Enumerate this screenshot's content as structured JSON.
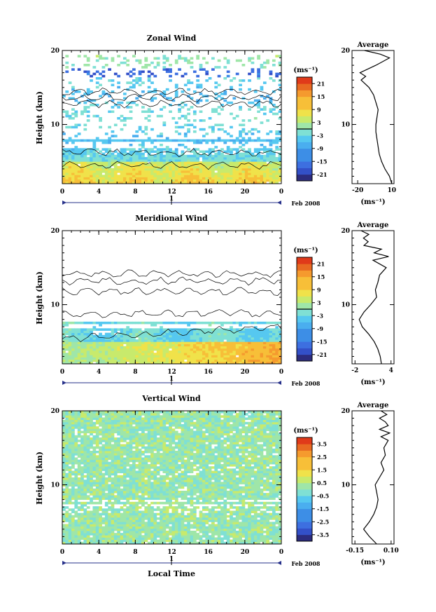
{
  "page": {
    "x_axis_title": "Local Time",
    "date_label": "Feb 2008",
    "day_marker": "1"
  },
  "chart_data": [
    {
      "type": "heatmap",
      "title": "Zonal Wind",
      "ylabel": "Height (km)",
      "xlim": [
        0,
        24
      ],
      "ylim": [
        2,
        20
      ],
      "x_ticks": [
        "0",
        "4",
        "8",
        "12",
        "16",
        "20",
        "0"
      ],
      "y_ticks": [
        "10",
        "20"
      ],
      "colorbar": {
        "unit": "(ms⁻¹)",
        "ticks": [
          "21",
          "15",
          "9",
          "3",
          "-3",
          "-9",
          "-15",
          "-21"
        ],
        "range": [
          -24,
          24
        ],
        "zero_line": 0
      },
      "profile": {
        "title": "Average",
        "xlabel": "(ms⁻¹)",
        "xlim": [
          -25,
          12
        ],
        "x_ticks": [
          "-20",
          "10"
        ],
        "y_ticks": [
          "10",
          "20"
        ],
        "points": [
          [
            10,
            2
          ],
          [
            8,
            3
          ],
          [
            4,
            4
          ],
          [
            1,
            5
          ],
          [
            -1,
            6
          ],
          [
            -2,
            7
          ],
          [
            -3,
            8
          ],
          [
            -4,
            9
          ],
          [
            -4,
            10
          ],
          [
            -3,
            11
          ],
          [
            -2,
            12
          ],
          [
            -4,
            13
          ],
          [
            -6,
            14
          ],
          [
            -10,
            15
          ],
          [
            -17,
            16
          ],
          [
            -13,
            16.5
          ],
          [
            -18,
            17
          ],
          [
            -4,
            18
          ],
          [
            8,
            19
          ],
          [
            0,
            19.5
          ],
          [
            -14,
            20
          ]
        ]
      }
    },
    {
      "type": "heatmap",
      "title": "Meridional Wind",
      "ylabel": "Height (km)",
      "xlim": [
        0,
        24
      ],
      "ylim": [
        2,
        20
      ],
      "x_ticks": [
        "0",
        "4",
        "8",
        "12",
        "16",
        "20",
        "0"
      ],
      "y_ticks": [
        "10",
        "20"
      ],
      "colorbar": {
        "unit": "(ms⁻¹)",
        "ticks": [
          "21",
          "15",
          "9",
          "3",
          "-3",
          "-9",
          "-15",
          "-21"
        ],
        "range": [
          -24,
          24
        ],
        "zero_line": 0
      },
      "profile": {
        "title": "Average",
        "xlabel": "(ms⁻¹)",
        "xlim": [
          -2.5,
          4.5
        ],
        "x_ticks": [
          "-2",
          "4"
        ],
        "y_ticks": [
          "10",
          "20"
        ],
        "points": [
          [
            2.4,
            2
          ],
          [
            2.2,
            3
          ],
          [
            1.8,
            4
          ],
          [
            1.2,
            5
          ],
          [
            0.3,
            6
          ],
          [
            -0.8,
            7
          ],
          [
            -1.3,
            8
          ],
          [
            -0.5,
            9
          ],
          [
            0.6,
            10
          ],
          [
            1.6,
            11
          ],
          [
            1.4,
            12
          ],
          [
            1.8,
            13
          ],
          [
            2.1,
            14
          ],
          [
            3.2,
            15
          ],
          [
            1.0,
            16
          ],
          [
            3.6,
            16.5
          ],
          [
            1.2,
            17
          ],
          [
            2.4,
            17.5
          ],
          [
            -0.5,
            18
          ],
          [
            0.2,
            18.5
          ],
          [
            -0.6,
            19
          ],
          [
            0.3,
            19.5
          ],
          [
            -1.0,
            20
          ]
        ]
      }
    },
    {
      "type": "heatmap",
      "title": "Vertical Wind",
      "ylabel": "Height (km)",
      "xlim": [
        0,
        24
      ],
      "ylim": [
        2,
        20
      ],
      "x_ticks": [
        "0",
        "4",
        "8",
        "12",
        "16",
        "20",
        "0"
      ],
      "y_ticks": [
        "10",
        "20"
      ],
      "colorbar": {
        "unit": "(ms⁻¹)",
        "ticks": [
          "3.5",
          "2.5",
          "1.5",
          "0.5",
          "-0.5",
          "-1.5",
          "-2.5",
          "-3.5"
        ],
        "range": [
          -4,
          4
        ],
        "zero_line": null
      },
      "profile": {
        "title": "Average",
        "xlabel": "(ms⁻¹)",
        "xlim": [
          -0.17,
          0.12
        ],
        "x_ticks": [
          "-0.15",
          "0.10"
        ],
        "y_ticks": [
          "10",
          "20"
        ],
        "points": [
          [
            0.0,
            2
          ],
          [
            -0.05,
            3
          ],
          [
            -0.09,
            4
          ],
          [
            -0.05,
            5
          ],
          [
            -0.02,
            6
          ],
          [
            0.0,
            7
          ],
          [
            0.01,
            8
          ],
          [
            0.0,
            9
          ],
          [
            -0.01,
            10
          ],
          [
            0.02,
            11
          ],
          [
            0.05,
            12
          ],
          [
            0.03,
            13
          ],
          [
            0.06,
            14
          ],
          [
            0.05,
            15
          ],
          [
            0.08,
            16
          ],
          [
            0.03,
            16.5
          ],
          [
            0.09,
            17
          ],
          [
            0.02,
            17.5
          ],
          [
            0.08,
            18
          ],
          [
            0.06,
            18.5
          ],
          [
            0.02,
            19
          ],
          [
            0.07,
            19.5
          ],
          [
            0.03,
            20
          ]
        ]
      }
    }
  ]
}
